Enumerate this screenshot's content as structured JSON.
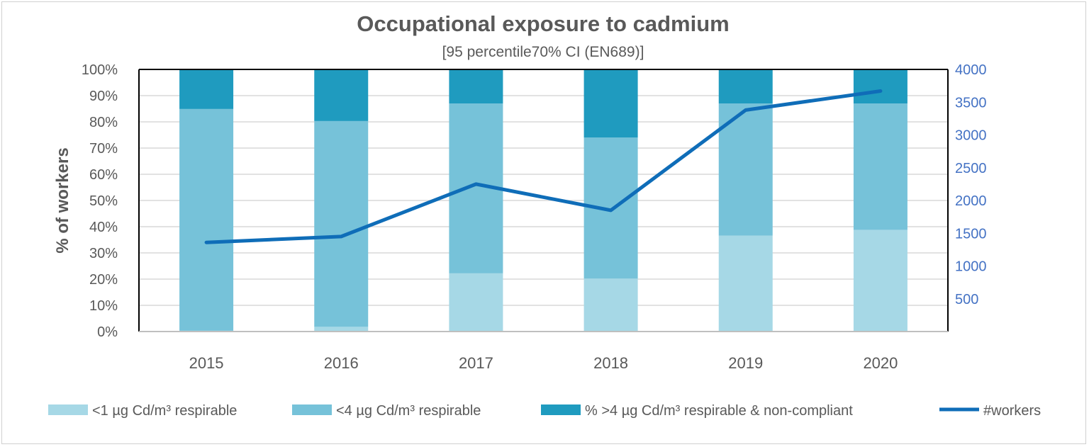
{
  "chart_data": {
    "type": "bar",
    "stacked": true,
    "title": "Occupational exposure to cadmium",
    "subtitle": "[95 percentile70% CI (EN689)]",
    "ylabel": "% of workers",
    "xlabel": "",
    "categories": [
      "2015",
      "2016",
      "2017",
      "2018",
      "2019",
      "2020"
    ],
    "ylim": [
      0,
      100
    ],
    "yticks": [
      "0%",
      "10%",
      "20%",
      "30%",
      "40%",
      "50%",
      "60%",
      "70%",
      "80%",
      "90%",
      "100%"
    ],
    "y2lim": [
      0,
      4000
    ],
    "y2ticks": [
      "500",
      "1000",
      "1500",
      "2000",
      "2500",
      "3000",
      "3500",
      "4000"
    ],
    "grid": true,
    "legend_position": "bottom",
    "series": [
      {
        "name": "<1 µg Cd/m³ respirable",
        "type": "bar",
        "color": "#a6d8e6",
        "values": [
          0.3,
          1.8,
          22.2,
          20.2,
          36.6,
          38.8
        ]
      },
      {
        "name": "<4 µg Cd/m³ respirable",
        "type": "bar",
        "color": "#76c2d9",
        "values": [
          84.6,
          78.5,
          64.8,
          53.8,
          50.4,
          48.2
        ]
      },
      {
        "name": "% >4 µg Cd/m³ respirable & non-compliant",
        "type": "bar",
        "color": "#1f9bbf",
        "values": [
          15.1,
          19.7,
          13.0,
          26.0,
          13.0,
          13.0
        ]
      },
      {
        "name": "#workers",
        "type": "line",
        "axis": "right",
        "color": "#0f6db8",
        "values": [
          1360,
          1450,
          2250,
          1850,
          3380,
          3670
        ]
      }
    ]
  }
}
